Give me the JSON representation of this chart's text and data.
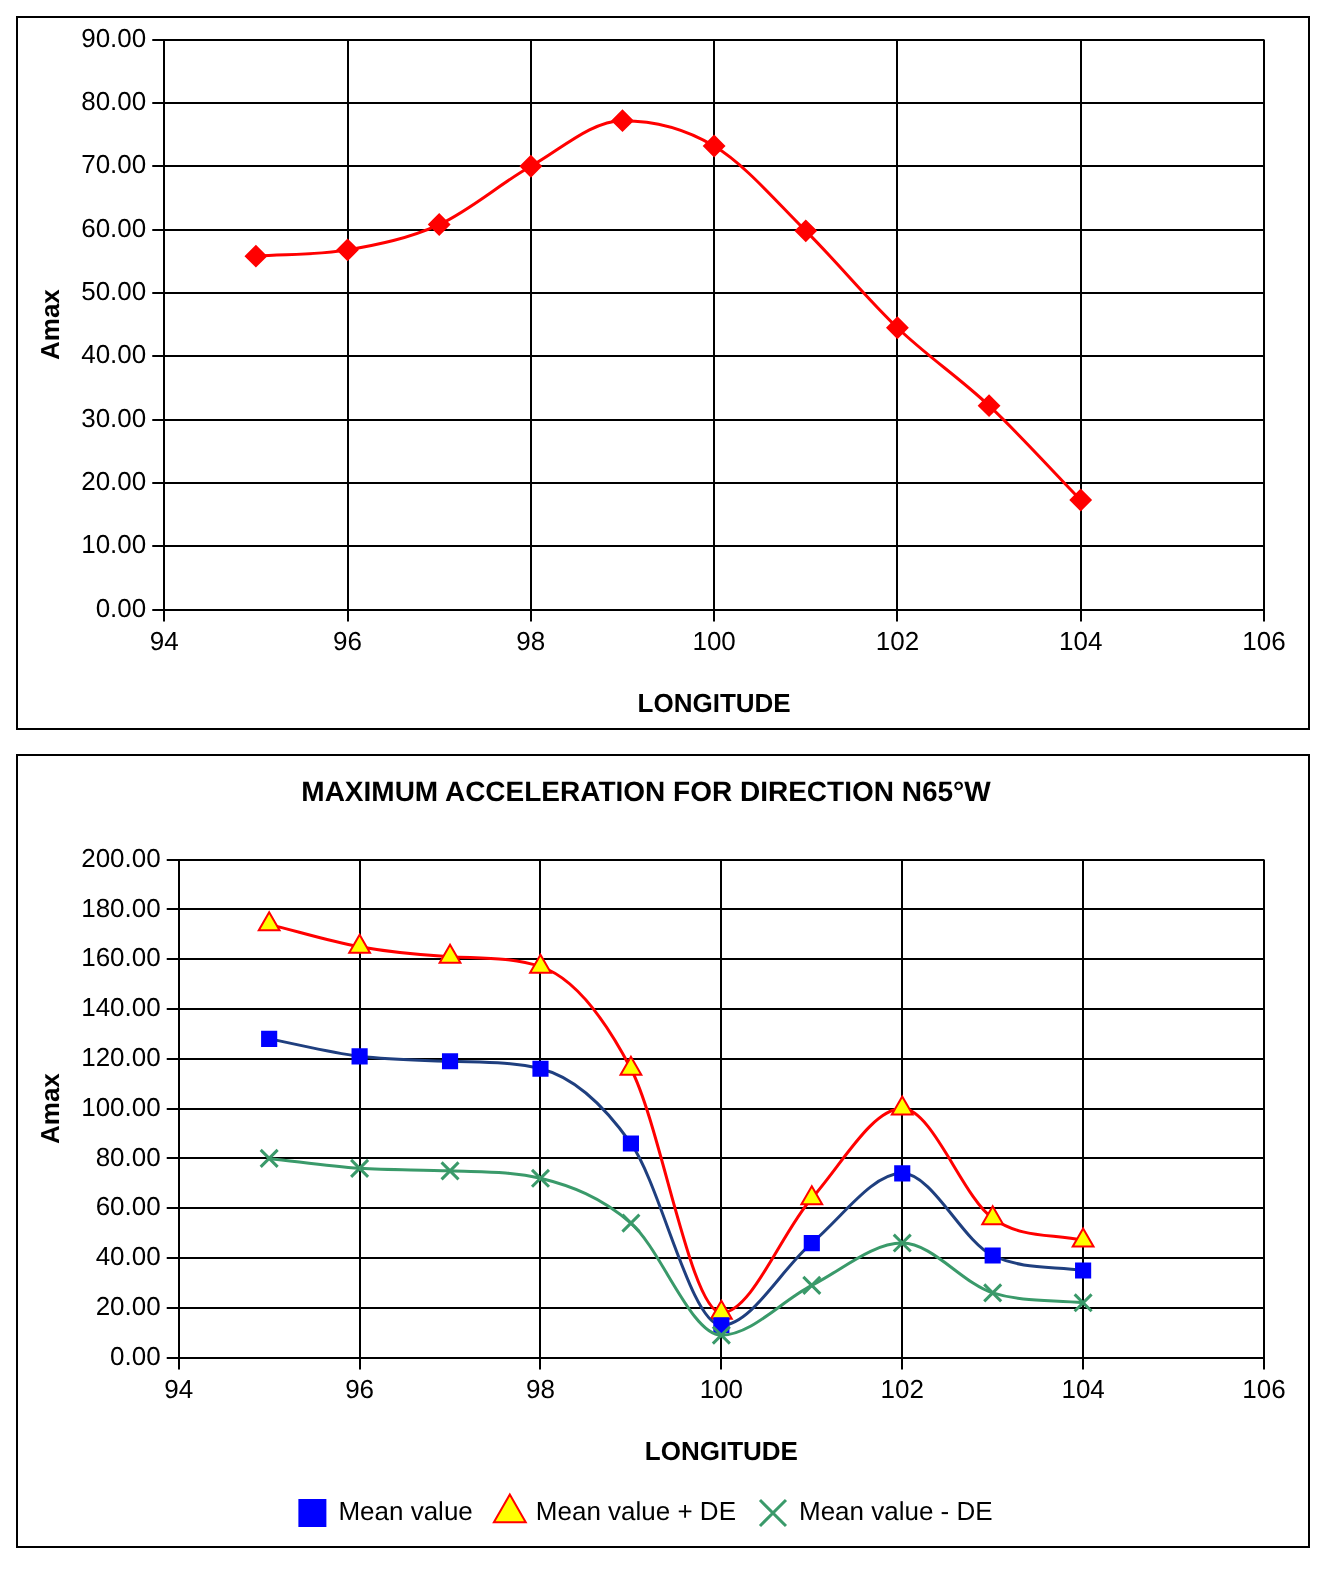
{
  "chart_data": [
    {
      "type": "line",
      "xlabel": "LONGITUDE",
      "ylabel": "Amax",
      "x": [
        95,
        96,
        97,
        98,
        99,
        100,
        101,
        102,
        103,
        104
      ],
      "xlim": [
        94,
        106
      ],
      "xticks": [
        94,
        96,
        98,
        100,
        102,
        104,
        106
      ],
      "ylim": [
        0,
        90
      ],
      "yticks": [
        {
          "value": 0,
          "label": "0.00"
        },
        {
          "value": 10,
          "label": "10.00"
        },
        {
          "value": 20,
          "label": "20.00"
        },
        {
          "value": 30,
          "label": "30.00"
        },
        {
          "value": 40,
          "label": "40.00"
        },
        {
          "value": 50,
          "label": "50.00"
        },
        {
          "value": 60,
          "label": "60.00"
        },
        {
          "value": 70,
          "label": "70.00"
        },
        {
          "value": 80,
          "label": "80.00"
        },
        {
          "value": 90,
          "label": "90.00"
        }
      ],
      "grid": true,
      "legend": false,
      "marker": "diamond",
      "series": [
        {
          "color": "#ff0000",
          "values": [
            55.8,
            56.8,
            60.8,
            70,
            77.2,
            73.2,
            59.8,
            44.5,
            32.2,
            17.3
          ]
        }
      ]
    },
    {
      "type": "line",
      "title": "MAXIMUM ACCELERATION FOR DIRECTION N65°W",
      "xlabel": "LONGITUDE",
      "ylabel": "Amax",
      "x": [
        95,
        96,
        97,
        98,
        99,
        100,
        101,
        102,
        103,
        104
      ],
      "xlim": [
        94,
        106
      ],
      "xticks": [
        94,
        96,
        98,
        100,
        102,
        104,
        106
      ],
      "ylim": [
        0,
        200
      ],
      "yticks": [
        {
          "value": 0,
          "label": "0.00"
        },
        {
          "value": 20,
          "label": "20.00"
        },
        {
          "value": 40,
          "label": "40.00"
        },
        {
          "value": 60,
          "label": "60.00"
        },
        {
          "value": 80,
          "label": "80.00"
        },
        {
          "value": 100,
          "label": "100.00"
        },
        {
          "value": 120,
          "label": "120.00"
        },
        {
          "value": 140,
          "label": "140.00"
        },
        {
          "value": 160,
          "label": "160.00"
        },
        {
          "value": 180,
          "label": "180.00"
        },
        {
          "value": 200,
          "label": "200.00"
        }
      ],
      "grid": true,
      "legend": "bottom",
      "series": [
        {
          "name": "Mean value",
          "color": "#1f3f7f",
          "marker": "square",
          "values": [
            128,
            121,
            119,
            116,
            86,
            13,
            46,
            74,
            41,
            35
          ]
        },
        {
          "name": "Mean value + DE",
          "color": "#ff0000",
          "marker": "triangle",
          "values": [
            174,
            165,
            161,
            157,
            116,
            18,
            64,
            100,
            56,
            47
          ]
        },
        {
          "name": "Mean value - DE",
          "color": "#3a9a6a",
          "marker": "cross",
          "values": [
            80,
            76,
            75,
            72,
            54,
            9,
            29,
            46,
            26,
            22
          ]
        }
      ]
    }
  ]
}
